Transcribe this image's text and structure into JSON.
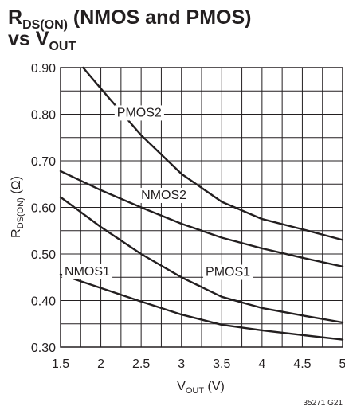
{
  "chart_data": {
    "type": "line",
    "title": {
      "line1": {
        "main": "R",
        "sub": "DS(ON)",
        "rest": " (NMOS and PMOS)"
      },
      "line2": {
        "main": "vs V",
        "sub": "OUT"
      }
    },
    "xlabel": {
      "main": "V",
      "sub": "OUT",
      "rest": " (V)"
    },
    "ylabel": {
      "main": "R",
      "sub": "DS(ON)",
      "rest": " (Ω)"
    },
    "xlim": [
      1.5,
      5
    ],
    "ylim": [
      0.3,
      0.9
    ],
    "x_ticks": [
      1.5,
      2,
      2.5,
      3,
      3.5,
      4,
      4.5,
      5
    ],
    "x_tick_labels": [
      "1.5",
      "2",
      "2.5",
      "3",
      "3.5",
      "4",
      "4.5",
      "5"
    ],
    "y_ticks": [
      0.3,
      0.4,
      0.5,
      0.6,
      0.7,
      0.8,
      0.9
    ],
    "y_tick_labels": [
      "0.30",
      "0.40",
      "0.50",
      "0.60",
      "0.70",
      "0.80",
      "0.90"
    ],
    "grid": true,
    "series": [
      {
        "name": "PMOS2",
        "x": [
          1.78,
          2,
          2.5,
          3,
          3.5,
          4,
          4.5,
          5
        ],
        "y": [
          0.9,
          0.855,
          0.755,
          0.672,
          0.612,
          0.575,
          0.553,
          0.53
        ]
      },
      {
        "name": "NMOS2",
        "x": [
          1.5,
          2,
          2.5,
          3,
          3.5,
          4,
          4.5,
          5
        ],
        "y": [
          0.678,
          0.637,
          0.6,
          0.565,
          0.535,
          0.512,
          0.492,
          0.473
        ]
      },
      {
        "name": "PMOS1",
        "x": [
          1.5,
          2,
          2.5,
          3,
          3.5,
          4,
          4.5,
          5
        ],
        "y": [
          0.622,
          0.558,
          0.5,
          0.45,
          0.408,
          0.384,
          0.368,
          0.353
        ]
      },
      {
        "name": "NMOS1",
        "x": [
          1.5,
          2,
          2.5,
          3,
          3.5,
          4,
          4.5,
          5
        ],
        "y": [
          0.456,
          0.427,
          0.398,
          0.37,
          0.348,
          0.336,
          0.326,
          0.316
        ]
      }
    ],
    "series_labels": [
      {
        "series": "PMOS2",
        "text": "PMOS2",
        "x": 2.2,
        "y": 0.795
      },
      {
        "series": "NMOS2",
        "text": "NMOS2",
        "x": 2.5,
        "y": 0.618
      },
      {
        "series": "PMOS1",
        "text": "PMOS1",
        "x": 3.3,
        "y": 0.453
      },
      {
        "series": "NMOS1",
        "text": "NMOS1",
        "x": 1.55,
        "y": 0.454
      }
    ],
    "figure_id": "35271 G21"
  }
}
